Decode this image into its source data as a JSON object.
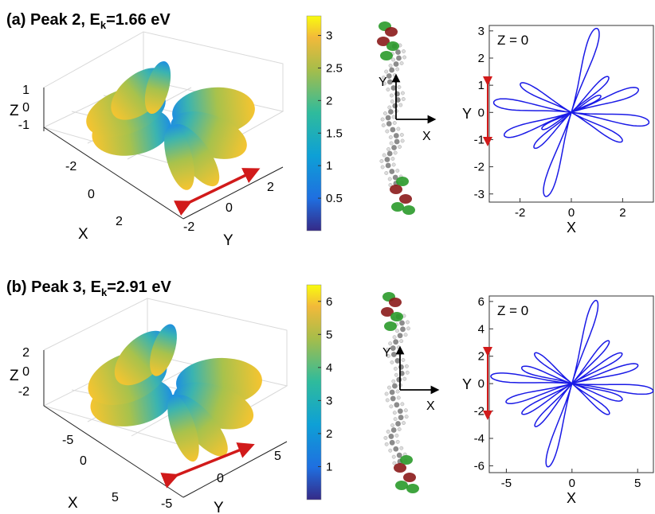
{
  "panels": [
    {
      "label": "(a)",
      "title_main": "Peak 2, E",
      "title_sub": "k",
      "title_tail": "=1.66 eV",
      "surface": {
        "z_label": "Z",
        "x_label": "X",
        "y_label": "Y",
        "z_ticks": [
          "1",
          "0",
          "-1"
        ],
        "x_ticks": [
          "-2",
          "0",
          "2"
        ],
        "y_ticks": [
          "-2",
          "0",
          "2"
        ]
      },
      "colorbar": {
        "ticks": [
          "3",
          "2.5",
          "2",
          "1.5",
          "1",
          "0.5"
        ],
        "range": [
          0,
          3.3
        ]
      },
      "molecule": {
        "x_label": "X",
        "y_label": "Y"
      },
      "polar": {
        "annotation": "Z = 0",
        "xlabel": "X",
        "ylabel": "Y"
      }
    },
    {
      "label": "(b)",
      "title_main": "Peak 3, E",
      "title_sub": "k",
      "title_tail": "=2.91 eV",
      "surface": {
        "z_label": "Z",
        "x_label": "X",
        "y_label": "Y",
        "z_ticks": [
          "2",
          "0",
          "-2"
        ],
        "x_ticks": [
          "-5",
          "0",
          "5"
        ],
        "y_ticks": [
          "-5",
          "0",
          "5"
        ]
      },
      "colorbar": {
        "ticks": [
          "6",
          "5",
          "4",
          "3",
          "2",
          "1"
        ],
        "range": [
          0,
          6.5
        ]
      },
      "molecule": {
        "x_label": "X",
        "y_label": "Y"
      },
      "polar": {
        "annotation": "Z = 0",
        "xlabel": "X",
        "ylabel": "Y"
      }
    }
  ],
  "colors": {
    "curve": "#1a1ae6",
    "arrow": "#d11a1a",
    "parula_low": "#3b2fa8",
    "parula_mid": "#17b3b0",
    "parula_high": "#f8f90e"
  },
  "chart_data": [
    {
      "type": "line",
      "title": "",
      "xlabel": "X",
      "ylabel": "Y",
      "xlim": [
        -3.2,
        3.2
      ],
      "ylim": [
        -3.3,
        3.2
      ],
      "xticks": [
        -2,
        0,
        2
      ],
      "yticks": [
        -3,
        -2,
        -1,
        0,
        1,
        2,
        3
      ],
      "xtick_labels": [
        "-2",
        "0",
        "2"
      ],
      "ytick_labels": [
        "-3",
        "-2",
        "-1",
        "0",
        "1",
        "2",
        "3"
      ],
      "lobes": [
        {
          "angle_deg": 72,
          "length": 3.25
        },
        {
          "angle_deg": 252,
          "length": 3.25
        },
        {
          "angle_deg": 42,
          "length": 1.95
        },
        {
          "angle_deg": 222,
          "length": 1.95
        },
        {
          "angle_deg": 18,
          "length": 2.75
        },
        {
          "angle_deg": 198,
          "length": 2.75
        },
        {
          "angle_deg": 173,
          "length": 3.05
        },
        {
          "angle_deg": 353,
          "length": 3.05
        },
        {
          "angle_deg": 152,
          "length": 2.25
        },
        {
          "angle_deg": 332,
          "length": 2.25
        },
        {
          "angle_deg": 28,
          "length": 1.3
        },
        {
          "angle_deg": 208,
          "length": 1.3
        }
      ]
    },
    {
      "type": "line",
      "title": "",
      "xlabel": "X",
      "ylabel": "Y",
      "xlim": [
        -6.3,
        6.2
      ],
      "ylim": [
        -6.5,
        6.4
      ],
      "xticks": [
        -5,
        0,
        5
      ],
      "yticks": [
        -6,
        -4,
        -2,
        0,
        2,
        4,
        6
      ],
      "xtick_labels": [
        "-5",
        "0",
        "5"
      ],
      "ytick_labels": [
        "-6",
        "-4",
        "-2",
        "0",
        "2",
        "4",
        "6"
      ],
      "lobes": [
        {
          "angle_deg": 73,
          "length": 6.35
        },
        {
          "angle_deg": 253,
          "length": 6.35
        },
        {
          "angle_deg": 48,
          "length": 4.2
        },
        {
          "angle_deg": 228,
          "length": 4.2
        },
        {
          "angle_deg": 30,
          "length": 4.4
        },
        {
          "angle_deg": 210,
          "length": 4.4
        },
        {
          "angle_deg": 15,
          "length": 5.2
        },
        {
          "angle_deg": 195,
          "length": 5.2
        },
        {
          "angle_deg": 175,
          "length": 6.2
        },
        {
          "angle_deg": 355,
          "length": 6.2
        },
        {
          "angle_deg": 163,
          "length": 4.0
        },
        {
          "angle_deg": 343,
          "length": 4.0
        },
        {
          "angle_deg": 142,
          "length": 3.6
        },
        {
          "angle_deg": 322,
          "length": 3.6
        }
      ]
    }
  ]
}
